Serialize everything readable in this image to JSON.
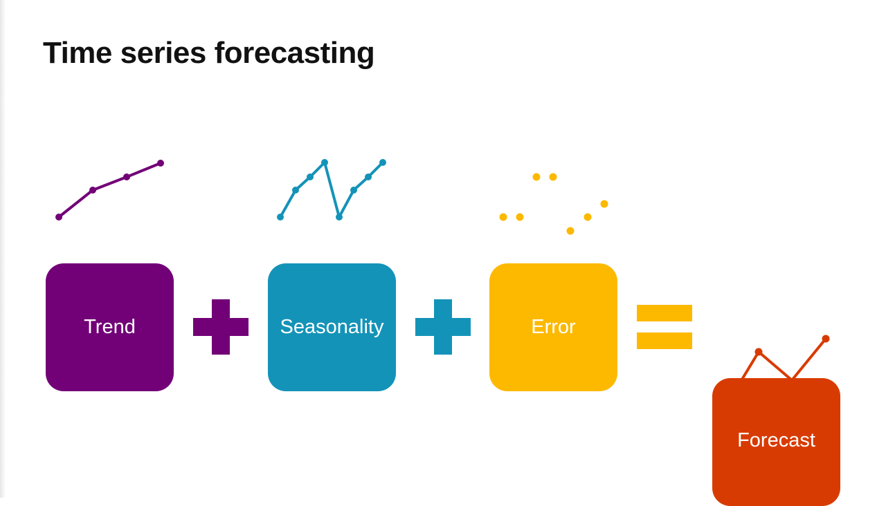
{
  "title": "Time series forecasting",
  "components": [
    {
      "label": "Trend",
      "color": "#720077"
    },
    {
      "label": "Seasonality",
      "color": "#1493b8"
    },
    {
      "label": "Error",
      "color": "#fdb900"
    }
  ],
  "result": {
    "label": "Forecast",
    "color": "#d83b01"
  },
  "operators": [
    "+",
    "+",
    "="
  ]
}
